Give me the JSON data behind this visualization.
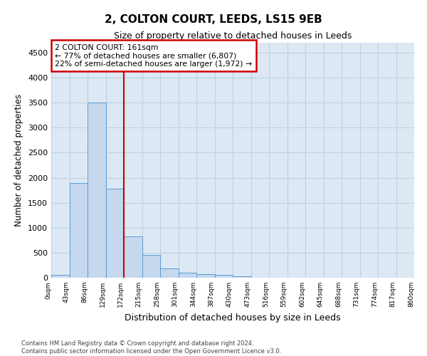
{
  "title": "2, COLTON COURT, LEEDS, LS15 9EB",
  "subtitle": "Size of property relative to detached houses in Leeds",
  "xlabel": "Distribution of detached houses by size in Leeds",
  "ylabel": "Number of detached properties",
  "bar_values": [
    50,
    1900,
    3500,
    1775,
    825,
    450,
    185,
    100,
    75,
    50,
    30,
    0,
    0,
    0,
    0,
    0,
    0,
    0,
    0,
    0
  ],
  "bar_labels": [
    "0sqm",
    "43sqm",
    "86sqm",
    "129sqm",
    "172sqm",
    "215sqm",
    "258sqm",
    "301sqm",
    "344sqm",
    "387sqm",
    "430sqm",
    "473sqm",
    "516sqm",
    "559sqm",
    "602sqm",
    "645sqm",
    "688sqm",
    "731sqm",
    "774sqm",
    "817sqm",
    "860sqm"
  ],
  "bar_color": "#c5d8ee",
  "bar_edge_color": "#5b9bd5",
  "property_line_x": 3.5,
  "property_line_color": "#cc0000",
  "annotation_text": "2 COLTON COURT: 161sqm\n← 77% of detached houses are smaller (6,807)\n22% of semi-detached houses are larger (1,972) →",
  "annotation_box_color": "#ffffff",
  "annotation_box_edge_color": "#cc0000",
  "ylim": [
    0,
    4700
  ],
  "yticks": [
    0,
    500,
    1000,
    1500,
    2000,
    2500,
    3000,
    3500,
    4000,
    4500
  ],
  "grid_color": "#c0d0e0",
  "background_color": "#dce9f5",
  "footer_line1": "Contains HM Land Registry data © Crown copyright and database right 2024.",
  "footer_line2": "Contains public sector information licensed under the Open Government Licence v3.0."
}
